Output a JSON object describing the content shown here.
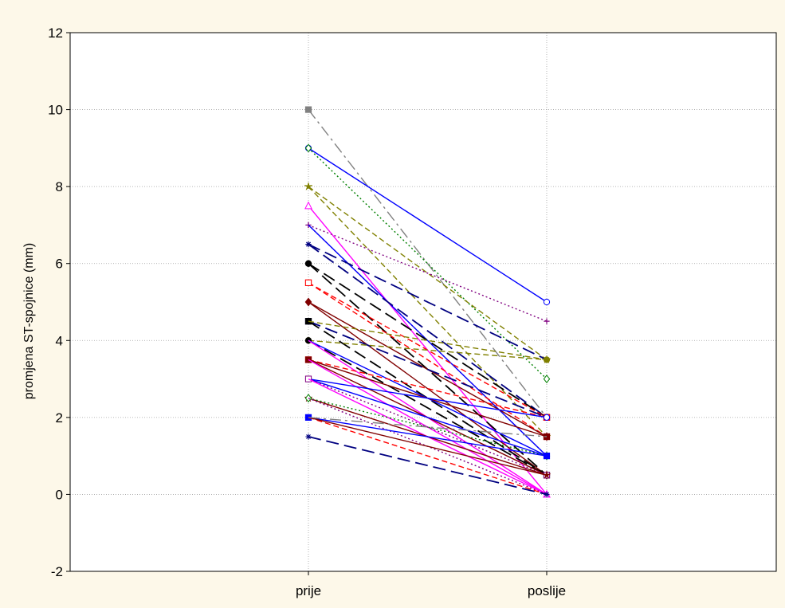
{
  "chart_data": {
    "type": "line",
    "title": "",
    "xlabel": "",
    "ylabel": "promjena ST-spojnice (mm)",
    "categories": [
      "prije",
      "poslije"
    ],
    "ylim": [
      -2,
      12
    ],
    "yticks": [
      "-2",
      "0",
      "2",
      "4",
      "6",
      "8",
      "10",
      "12"
    ],
    "grid": true,
    "legend": "none",
    "series": [
      {
        "values": [
          10,
          2
        ],
        "color": "#808080",
        "dash": "dashdot",
        "marker": "square-filled"
      },
      {
        "values": [
          9,
          5
        ],
        "color": "#0000ff",
        "dash": "solid",
        "marker": "circle-open"
      },
      {
        "values": [
          9,
          3
        ],
        "color": "#008000",
        "dash": "dotted",
        "marker": "diamond-open"
      },
      {
        "values": [
          8,
          3.5
        ],
        "color": "#808000",
        "dash": "dashed",
        "marker": "star"
      },
      {
        "values": [
          8,
          1.5
        ],
        "color": "#808000",
        "dash": "dashed",
        "marker": "star"
      },
      {
        "values": [
          7.5,
          0
        ],
        "color": "#ff00ff",
        "dash": "solid",
        "marker": "triangle-open"
      },
      {
        "values": [
          7,
          4.5
        ],
        "color": "#800080",
        "dash": "dotted",
        "marker": "plus"
      },
      {
        "values": [
          7,
          1
        ],
        "color": "#800080",
        "dash": "dotted",
        "marker": "plus"
      },
      {
        "values": [
          7,
          1
        ],
        "color": "#0000ff",
        "dash": "solid",
        "marker": "none"
      },
      {
        "values": [
          6.5,
          3.5
        ],
        "color": "#000080",
        "dash": "longdash",
        "marker": "asterisk"
      },
      {
        "values": [
          6.5,
          2
        ],
        "color": "#000080",
        "dash": "longdash",
        "marker": "asterisk"
      },
      {
        "values": [
          6,
          2
        ],
        "color": "#000000",
        "dash": "longdash",
        "marker": "circle-filled"
      },
      {
        "values": [
          6,
          0.5
        ],
        "color": "#000000",
        "dash": "longdash",
        "marker": "circle-filled"
      },
      {
        "values": [
          5.5,
          1.5
        ],
        "color": "#ff0000",
        "dash": "dashed",
        "marker": "square-open"
      },
      {
        "values": [
          5.5,
          2
        ],
        "color": "#ff0000",
        "dash": "dashed",
        "marker": "square-open"
      },
      {
        "values": [
          5,
          0.5
        ],
        "color": "#800000",
        "dash": "solid",
        "marker": "diamond-filled"
      },
      {
        "values": [
          5,
          1.5
        ],
        "color": "#800000",
        "dash": "solid",
        "marker": "diamond-filled"
      },
      {
        "values": [
          4.5,
          2
        ],
        "color": "#000080",
        "dash": "longdash",
        "marker": "square-filled"
      },
      {
        "values": [
          4.5,
          0.5
        ],
        "color": "#000000",
        "dash": "longdash",
        "marker": "square-filled"
      },
      {
        "values": [
          4.5,
          3.5
        ],
        "color": "#808000",
        "dash": "dashed",
        "marker": "none"
      },
      {
        "values": [
          4,
          3.5
        ],
        "color": "#808000",
        "dash": "dashed",
        "marker": "circle-filled"
      },
      {
        "values": [
          4,
          0.5
        ],
        "color": "#000000",
        "dash": "longdash",
        "marker": "circle-filled"
      },
      {
        "values": [
          4,
          1
        ],
        "color": "#0000ff",
        "dash": "solid",
        "marker": "none"
      },
      {
        "values": [
          4,
          0
        ],
        "color": "#ff00ff",
        "dash": "solid",
        "marker": "none"
      },
      {
        "values": [
          3.5,
          2
        ],
        "color": "#ff0000",
        "dash": "dashed",
        "marker": "square-filled"
      },
      {
        "values": [
          3.5,
          1.5
        ],
        "color": "#800000",
        "dash": "solid",
        "marker": "square-filled"
      },
      {
        "values": [
          3.5,
          0.5
        ],
        "color": "#800000",
        "dash": "solid",
        "marker": "none"
      },
      {
        "values": [
          3.5,
          0
        ],
        "color": "#ff00ff",
        "dash": "solid",
        "marker": "none"
      },
      {
        "values": [
          3,
          2
        ],
        "color": "#0000ff",
        "dash": "solid",
        "marker": "circle-open"
      },
      {
        "values": [
          3,
          1
        ],
        "color": "#0000ff",
        "dash": "solid",
        "marker": "circle-open"
      },
      {
        "values": [
          3,
          0.5
        ],
        "color": "#800080",
        "dash": "dotted",
        "marker": "square-open"
      },
      {
        "values": [
          3,
          0
        ],
        "color": "#ff00ff",
        "dash": "solid",
        "marker": "none"
      },
      {
        "values": [
          2.5,
          0.5
        ],
        "color": "#800000",
        "dash": "solid",
        "marker": "star"
      },
      {
        "values": [
          2.5,
          1
        ],
        "color": "#008000",
        "dash": "dotted",
        "marker": "diamond-open"
      },
      {
        "values": [
          2.5,
          0
        ],
        "color": "#800080",
        "dash": "dotted",
        "marker": "none"
      },
      {
        "values": [
          2,
          1
        ],
        "color": "#0000ff",
        "dash": "solid",
        "marker": "square-filled"
      },
      {
        "values": [
          2,
          0
        ],
        "color": "#ff0000",
        "dash": "dashed",
        "marker": "none"
      },
      {
        "values": [
          2,
          0.5
        ],
        "color": "#800000",
        "dash": "solid",
        "marker": "none"
      },
      {
        "values": [
          2,
          1.5
        ],
        "color": "#808080",
        "dash": "dashdot",
        "marker": "none"
      },
      {
        "values": [
          1.5,
          0
        ],
        "color": "#000080",
        "dash": "longdash",
        "marker": "asterisk"
      }
    ]
  }
}
